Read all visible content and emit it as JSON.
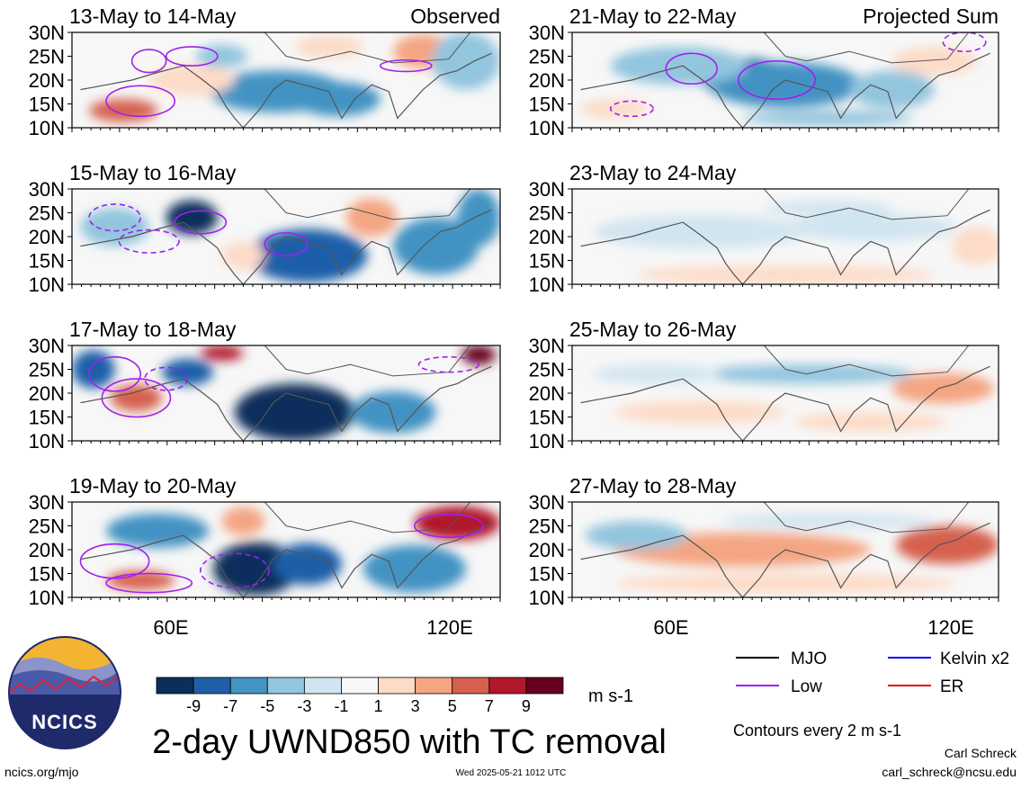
{
  "panels_observed": [
    {
      "date": "13-May to 14-May",
      "tag": "Observed"
    },
    {
      "date": "15-May to 16-May",
      "tag": ""
    },
    {
      "date": "17-May to 18-May",
      "tag": ""
    },
    {
      "date": "19-May to 20-May",
      "tag": ""
    }
  ],
  "panels_projected": [
    {
      "date": "21-May to 22-May",
      "tag": "Projected Sum"
    },
    {
      "date": "23-May to 24-May",
      "tag": ""
    },
    {
      "date": "25-May to 26-May",
      "tag": ""
    },
    {
      "date": "27-May to 28-May",
      "tag": ""
    }
  ],
  "chart_data": {
    "type": "heatmap",
    "title": "2-day UWND850 with TC removal",
    "lat_ticks": [
      "30N",
      "25N",
      "20N",
      "15N",
      "10N"
    ],
    "lon_ticks": [
      "60E",
      "120E"
    ],
    "lon_range": [
      40,
      130
    ],
    "lat_range": [
      10,
      30
    ],
    "colorbar": {
      "unit": "m s-1",
      "tick_labels": [
        "-9",
        "-7",
        "-5",
        "-3",
        "-1",
        "1",
        "3",
        "5",
        "7",
        "9"
      ],
      "colors": [
        "#0b2e5c",
        "#1f5fa8",
        "#4393c3",
        "#92c5de",
        "#d1e5f0",
        "#f7f7f7",
        "#fddbc7",
        "#f4a582",
        "#d6604d",
        "#b2182b",
        "#67001f"
      ]
    },
    "legend": [
      {
        "label": "MJO",
        "color": "#000000"
      },
      {
        "label": "Kelvin x2",
        "color": "#0000ff"
      },
      {
        "label": "Low",
        "color": "#a020f0"
      },
      {
        "label": "ER",
        "color": "#e00000"
      }
    ],
    "contour_note": "Contours every 2 m s-1"
  },
  "logo_text": "NCICS",
  "footer": {
    "url": "ncics.org/mjo",
    "timestamp": "Wed 2025-05-21 1012 UTC",
    "author": "Carl Schreck",
    "email": "carl_schreck@ncsu.edu"
  }
}
